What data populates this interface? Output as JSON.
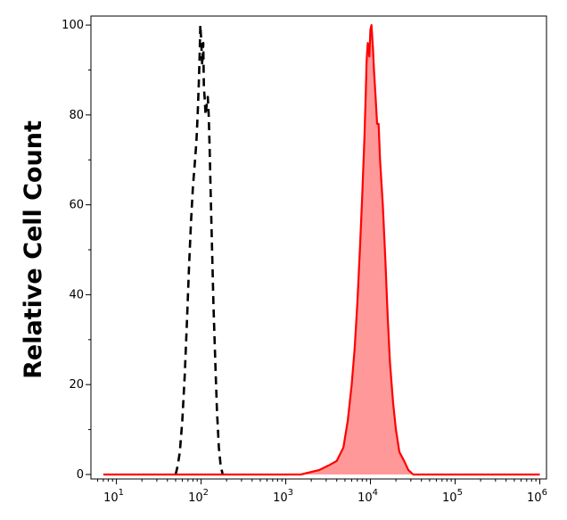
{
  "chart_data": {
    "type": "area",
    "xscale": "log",
    "xlim": [
      5,
      1200000
    ],
    "ylim": [
      -1,
      102
    ],
    "xlabel": "",
    "ylabel": "Relative Cell Count",
    "grid": false,
    "legend": "none",
    "x_ticks": [
      {
        "value": 10,
        "base": "10",
        "exp": "1"
      },
      {
        "value": 100,
        "base": "10",
        "exp": "2"
      },
      {
        "value": 1000,
        "base": "10",
        "exp": "3"
      },
      {
        "value": 10000,
        "base": "10",
        "exp": "4"
      },
      {
        "value": 100000,
        "base": "10",
        "exp": "5"
      },
      {
        "value": 1000000,
        "base": "10",
        "exp": "6"
      }
    ],
    "y_ticks": [
      {
        "value": 0,
        "label": "0"
      },
      {
        "value": 20,
        "label": "20"
      },
      {
        "value": 40,
        "label": "40"
      },
      {
        "value": 60,
        "label": "60"
      },
      {
        "value": 80,
        "label": "80"
      },
      {
        "value": 100,
        "label": "100"
      }
    ],
    "series": [
      {
        "style": "dashed",
        "color": "#000000",
        "fill": "none",
        "points": [
          [
            50,
            0
          ],
          [
            53,
            2
          ],
          [
            56,
            5
          ],
          [
            60,
            12
          ],
          [
            64,
            22
          ],
          [
            68,
            34
          ],
          [
            72,
            46
          ],
          [
            76,
            56
          ],
          [
            80,
            64
          ],
          [
            84,
            69
          ],
          [
            88,
            74
          ],
          [
            91,
            80
          ],
          [
            94,
            87
          ],
          [
            96,
            93
          ],
          [
            98,
            100
          ],
          [
            100,
            97
          ],
          [
            103,
            91
          ],
          [
            106,
            96
          ],
          [
            108,
            86
          ],
          [
            110,
            84
          ],
          [
            113,
            80
          ],
          [
            116,
            82
          ],
          [
            120,
            84
          ],
          [
            123,
            80
          ],
          [
            126,
            73
          ],
          [
            130,
            62
          ],
          [
            135,
            50
          ],
          [
            140,
            38
          ],
          [
            147,
            25
          ],
          [
            154,
            14
          ],
          [
            162,
            6
          ],
          [
            170,
            2
          ],
          [
            180,
            0
          ]
        ]
      },
      {
        "style": "solid",
        "color": "#ff0000",
        "fill": "#ff9999",
        "points": [
          [
            7,
            0
          ],
          [
            50,
            0
          ],
          [
            300,
            0
          ],
          [
            1500,
            0
          ],
          [
            2500,
            1
          ],
          [
            3200,
            2
          ],
          [
            4000,
            3
          ],
          [
            4800,
            6
          ],
          [
            5400,
            12
          ],
          [
            6000,
            20
          ],
          [
            6500,
            28
          ],
          [
            7000,
            38
          ],
          [
            7500,
            50
          ],
          [
            8000,
            62
          ],
          [
            8500,
            75
          ],
          [
            8800,
            85
          ],
          [
            9000,
            92
          ],
          [
            9300,
            96
          ],
          [
            9700,
            93
          ],
          [
            10000,
            99
          ],
          [
            10300,
            100
          ],
          [
            10700,
            95
          ],
          [
            11000,
            90
          ],
          [
            11500,
            84
          ],
          [
            12000,
            78
          ],
          [
            12500,
            78
          ],
          [
            13000,
            70
          ],
          [
            14000,
            60
          ],
          [
            15000,
            48
          ],
          [
            16000,
            35
          ],
          [
            17000,
            25
          ],
          [
            18500,
            16
          ],
          [
            20000,
            10
          ],
          [
            22000,
            5
          ],
          [
            25000,
            3
          ],
          [
            28000,
            1
          ],
          [
            32000,
            0
          ],
          [
            100000,
            0
          ],
          [
            1000000,
            0
          ]
        ]
      }
    ]
  }
}
